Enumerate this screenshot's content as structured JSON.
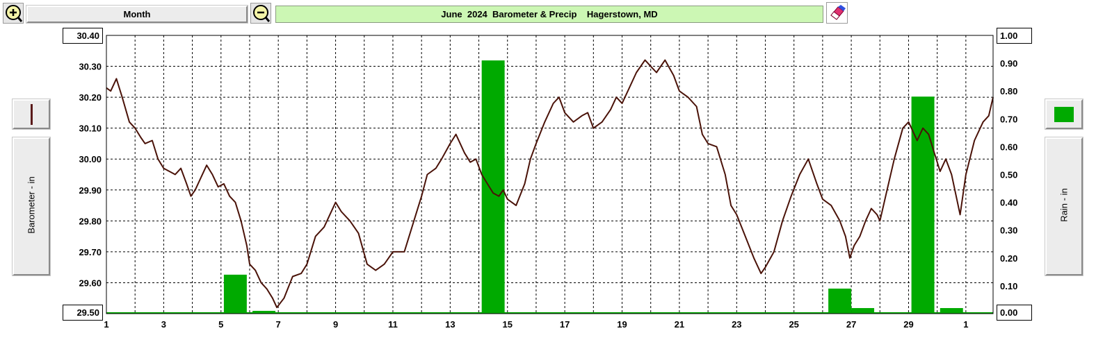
{
  "toolbar": {
    "zoom_in_icon": "zoom-in-icon",
    "zoom_out_icon": "zoom-out-icon",
    "period_label": "Month",
    "eraser_icon": "eraser-icon",
    "title": "June  2024  Barometer & Precip    Hagerstown, MD"
  },
  "left_panel": {
    "series_color": "#5a1a1a",
    "axis_label": "Barometer - in"
  },
  "right_panel": {
    "series_color": "#00aa00",
    "axis_label": "Rain - in"
  },
  "colors": {
    "barometer_line": "#4a1208",
    "rain_bars": "#00aa00",
    "title_bg": "#ccf7b4",
    "grid": "#000000"
  },
  "chart_data": {
    "type": "line+bar",
    "title": "June  2024  Barometer & Precip    Hagerstown, MD",
    "x_tick_labels": [
      "1",
      "3",
      "5",
      "7",
      "9",
      "11",
      "13",
      "15",
      "17",
      "19",
      "21",
      "23",
      "25",
      "27",
      "29",
      "1"
    ],
    "x_range_days": [
      1,
      31.95
    ],
    "grid": true,
    "y_left": {
      "label": "Barometer - in",
      "range": [
        29.5,
        30.4
      ],
      "tick_labels": [
        "30.40",
        "30.30",
        "30.20",
        "30.10",
        "30.00",
        "29.90",
        "29.80",
        "29.70",
        "29.60",
        "29.50"
      ]
    },
    "y_right": {
      "label": "Rain - in",
      "range": [
        0.0,
        1.0
      ],
      "tick_labels": [
        "1.00",
        "0.90",
        "0.80",
        "0.70",
        "0.60",
        "0.50",
        "0.40",
        "0.30",
        "0.20",
        "0.10",
        "0.00"
      ]
    },
    "series": [
      {
        "type": "line",
        "axis": "left",
        "x": [
          1.0,
          1.15,
          1.35,
          1.55,
          1.8,
          2.0,
          2.2,
          2.35,
          2.6,
          2.8,
          3.0,
          3.2,
          3.4,
          3.6,
          3.8,
          3.95,
          4.1,
          4.3,
          4.5,
          4.7,
          4.9,
          5.1,
          5.3,
          5.5,
          5.7,
          5.9,
          6.0,
          6.2,
          6.4,
          6.6,
          6.8,
          6.95,
          7.2,
          7.5,
          7.8,
          8.0,
          8.3,
          8.6,
          8.8,
          9.0,
          9.2,
          9.5,
          9.8,
          10.1,
          10.4,
          10.7,
          11.0,
          11.4,
          11.8,
          12.0,
          12.2,
          12.5,
          12.7,
          13.0,
          13.2,
          13.5,
          13.7,
          13.9,
          14.1,
          14.3,
          14.5,
          14.7,
          14.85,
          15.0,
          15.3,
          15.6,
          15.8,
          16.0,
          16.3,
          16.6,
          16.8,
          17.0,
          17.3,
          17.6,
          17.8,
          18.0,
          18.3,
          18.6,
          18.8,
          19.0,
          19.2,
          19.5,
          19.8,
          20.0,
          20.2,
          20.5,
          20.8,
          21.0,
          21.3,
          21.6,
          21.8,
          22.0,
          22.3,
          22.6,
          22.8,
          23.0,
          23.3,
          23.6,
          23.85,
          24.0,
          24.3,
          24.6,
          24.9,
          25.2,
          25.5,
          25.8,
          26.0,
          26.3,
          26.6,
          26.8,
          26.95,
          27.1,
          27.3,
          27.5,
          27.7,
          27.9,
          28.0,
          28.2,
          28.5,
          28.8,
          29.0,
          29.3,
          29.5,
          29.7,
          29.9,
          30.1,
          30.3,
          30.5,
          30.8,
          31.0,
          31.3,
          31.6,
          31.8,
          31.95
        ],
        "values": [
          30.23,
          30.22,
          30.26,
          30.2,
          30.12,
          30.1,
          30.07,
          30.05,
          30.06,
          30.0,
          29.97,
          29.96,
          29.95,
          29.97,
          29.92,
          29.88,
          29.9,
          29.94,
          29.98,
          29.95,
          29.91,
          29.92,
          29.88,
          29.86,
          29.8,
          29.72,
          29.66,
          29.64,
          29.6,
          29.58,
          29.55,
          29.52,
          29.55,
          29.62,
          29.63,
          29.66,
          29.75,
          29.78,
          29.82,
          29.86,
          29.83,
          29.8,
          29.76,
          29.66,
          29.64,
          29.66,
          29.7,
          29.7,
          29.82,
          29.88,
          29.95,
          29.97,
          30.0,
          30.05,
          30.08,
          30.02,
          29.99,
          30.0,
          29.95,
          29.92,
          29.89,
          29.88,
          29.9,
          29.87,
          29.85,
          29.92,
          30.0,
          30.05,
          30.12,
          30.18,
          30.2,
          30.15,
          30.12,
          30.14,
          30.15,
          30.1,
          30.12,
          30.16,
          30.2,
          30.18,
          30.22,
          30.28,
          30.32,
          30.3,
          30.28,
          30.32,
          30.27,
          30.22,
          30.2,
          30.17,
          30.08,
          30.05,
          30.04,
          29.95,
          29.85,
          29.82,
          29.75,
          29.68,
          29.63,
          29.65,
          29.7,
          29.8,
          29.88,
          29.95,
          30.0,
          29.92,
          29.87,
          29.85,
          29.8,
          29.75,
          29.68,
          29.72,
          29.75,
          29.8,
          29.84,
          29.82,
          29.8,
          29.88,
          30.0,
          30.1,
          30.12,
          30.06,
          30.1,
          30.08,
          30.02,
          29.96,
          30.0,
          29.95,
          29.82,
          29.95,
          30.06,
          30.12,
          30.14,
          30.2
        ]
      },
      {
        "type": "bar",
        "axis": "right",
        "name": "",
        "x_start": [
          5.1,
          6.1,
          14.1,
          26.2,
          27.0,
          29.1,
          30.1
        ],
        "x_end": [
          5.9,
          6.9,
          14.9,
          27.0,
          27.8,
          29.9,
          30.9
        ],
        "values": [
          0.14,
          0.01,
          0.91,
          0.09,
          0.02,
          0.78,
          0.02
        ]
      }
    ]
  }
}
